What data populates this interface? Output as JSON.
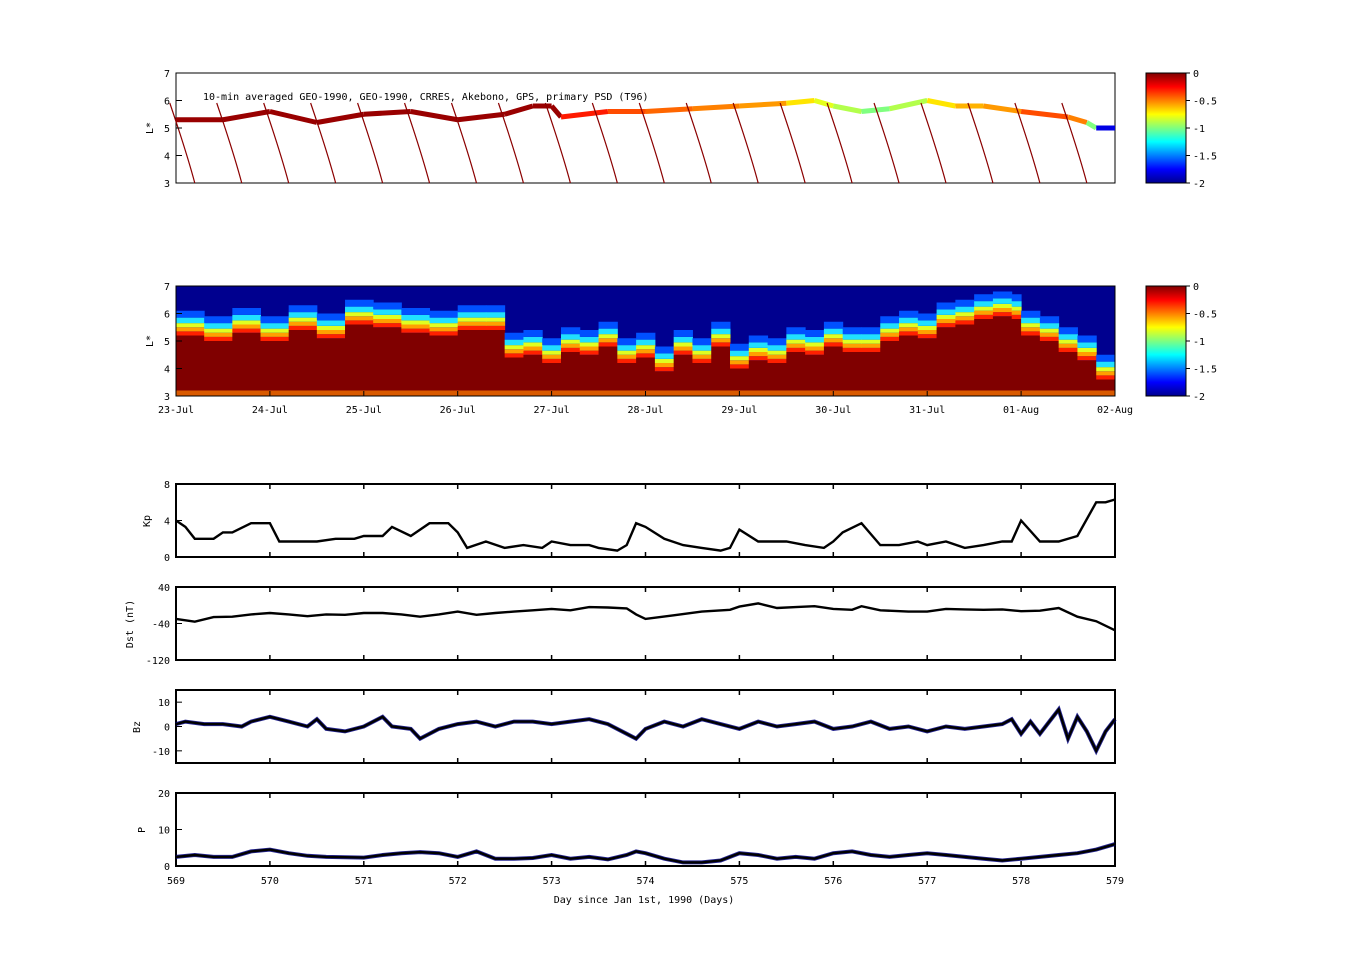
{
  "figure": {
    "annotation": "10-min averaged GEO-1990, GEO-1990, CRRES, Akebono, GPS, primary PSD (T96)",
    "xlabel": "Day since Jan 1st, 1990 (Days)"
  },
  "chart_data": [
    {
      "type": "scatter",
      "panel": "observations",
      "ylabel": "L*",
      "ylim": [
        3,
        7
      ],
      "yticks": [
        "3",
        "4",
        "5",
        "6",
        "7"
      ],
      "xlim": [
        569,
        579
      ],
      "colorbar": {
        "ticks": [
          "0",
          "-0.5",
          "-1",
          "-1.5",
          "-2"
        ],
        "range": [
          -2,
          0
        ]
      },
      "series": [
        {
          "values": [
            [
              569.0,
              5.3,
              -0.05
            ],
            [
              569.5,
              5.3,
              -0.05
            ],
            [
              570.0,
              5.6,
              -0.05
            ],
            [
              570.5,
              5.2,
              -0.05
            ],
            [
              571.0,
              5.5,
              -0.05
            ],
            [
              571.5,
              5.6,
              -0.05
            ],
            [
              572.0,
              5.3,
              -0.05
            ],
            [
              572.5,
              5.5,
              -0.05
            ],
            [
              572.8,
              5.8,
              -0.05
            ],
            [
              573.0,
              5.8,
              -0.05
            ],
            [
              573.1,
              5.4,
              -0.3
            ],
            [
              573.6,
              5.6,
              -0.4
            ],
            [
              574.0,
              5.6,
              -0.45
            ],
            [
              574.5,
              5.7,
              -0.5
            ],
            [
              575.0,
              5.8,
              -0.55
            ],
            [
              575.5,
              5.9,
              -0.7
            ],
            [
              575.8,
              6.0,
              -0.8
            ],
            [
              576.0,
              5.8,
              -0.9
            ],
            [
              576.3,
              5.6,
              -1.0
            ],
            [
              576.6,
              5.7,
              -0.9
            ],
            [
              577.0,
              6.0,
              -0.7
            ],
            [
              577.3,
              5.8,
              -0.6
            ],
            [
              577.6,
              5.8,
              -0.55
            ],
            [
              578.0,
              5.6,
              -0.4
            ],
            [
              578.5,
              5.4,
              -0.5
            ],
            [
              578.7,
              5.2,
              -1.0
            ],
            [
              578.8,
              5.0,
              -1.8
            ],
            [
              579.0,
              5.0,
              -1.6
            ]
          ]
        }
      ]
    },
    {
      "type": "heatmap",
      "panel": "psd",
      "ylabel": "L*",
      "ylim": [
        3,
        7
      ],
      "yticks": [
        "3",
        "4",
        "5",
        "6",
        "7"
      ],
      "date_ticks": [
        "23-Jul",
        "24-Jul",
        "25-Jul",
        "26-Jul",
        "27-Jul",
        "28-Jul",
        "29-Jul",
        "30-Jul",
        "31-Jul",
        "01-Aug",
        "02-Aug"
      ],
      "colorbar": {
        "ticks": [
          "0",
          "-0.5",
          "-1",
          "-1.5",
          "-2"
        ],
        "range": [
          -2,
          0
        ]
      },
      "boundary_L": [
        [
          569.0,
          5.2
        ],
        [
          569.3,
          5.0
        ],
        [
          569.6,
          5.3
        ],
        [
          569.9,
          5.0
        ],
        [
          570.2,
          5.4
        ],
        [
          570.5,
          5.1
        ],
        [
          570.8,
          5.6
        ],
        [
          571.1,
          5.5
        ],
        [
          571.4,
          5.3
        ],
        [
          571.7,
          5.2
        ],
        [
          572.0,
          5.4
        ],
        [
          572.3,
          5.4
        ],
        [
          572.5,
          4.4
        ],
        [
          572.7,
          4.5
        ],
        [
          572.9,
          4.2
        ],
        [
          573.1,
          4.6
        ],
        [
          573.3,
          4.5
        ],
        [
          573.5,
          4.8
        ],
        [
          573.7,
          4.2
        ],
        [
          573.9,
          4.4
        ],
        [
          574.1,
          3.9
        ],
        [
          574.3,
          4.5
        ],
        [
          574.5,
          4.2
        ],
        [
          574.7,
          4.8
        ],
        [
          574.9,
          4.0
        ],
        [
          575.1,
          4.3
        ],
        [
          575.3,
          4.2
        ],
        [
          575.5,
          4.6
        ],
        [
          575.7,
          4.5
        ],
        [
          575.9,
          4.8
        ],
        [
          576.1,
          4.6
        ],
        [
          576.3,
          4.6
        ],
        [
          576.5,
          5.0
        ],
        [
          576.7,
          5.2
        ],
        [
          576.9,
          5.1
        ],
        [
          577.1,
          5.5
        ],
        [
          577.3,
          5.6
        ],
        [
          577.5,
          5.8
        ],
        [
          577.7,
          5.9
        ],
        [
          577.9,
          5.8
        ],
        [
          578.0,
          5.2
        ],
        [
          578.2,
          5.0
        ],
        [
          578.4,
          4.6
        ],
        [
          578.6,
          4.3
        ],
        [
          578.8,
          3.6
        ],
        [
          579.0,
          4.2
        ]
      ]
    },
    {
      "type": "line",
      "panel": "kp",
      "ylabel": "Kp",
      "ylim": [
        0,
        8
      ],
      "yticks": [
        "0",
        "4",
        "8"
      ],
      "x": [
        569.0,
        569.1,
        569.2,
        569.4,
        569.5,
        569.6,
        569.8,
        570.0,
        570.1,
        570.3,
        570.5,
        570.7,
        570.9,
        571.0,
        571.2,
        571.3,
        571.5,
        571.7,
        571.9,
        572.0,
        572.1,
        572.3,
        572.5,
        572.7,
        572.9,
        573.0,
        573.2,
        573.4,
        573.5,
        573.7,
        573.8,
        573.9,
        574.0,
        574.2,
        574.4,
        574.6,
        574.8,
        574.9,
        575.0,
        575.2,
        575.5,
        575.7,
        575.9,
        576.0,
        576.1,
        576.3,
        576.5,
        576.7,
        576.9,
        577.0,
        577.2,
        577.4,
        577.6,
        577.8,
        577.9,
        578.0,
        578.2,
        578.4,
        578.6,
        578.8,
        578.9,
        579.0
      ],
      "values": [
        4.0,
        3.3,
        2.0,
        2.0,
        2.7,
        2.7,
        3.7,
        3.7,
        1.7,
        1.7,
        1.7,
        2.0,
        2.0,
        2.3,
        2.3,
        3.3,
        2.3,
        3.7,
        3.7,
        2.7,
        1.0,
        1.7,
        1.0,
        1.3,
        1.0,
        1.7,
        1.3,
        1.3,
        1.0,
        0.7,
        1.3,
        3.7,
        3.3,
        2.0,
        1.3,
        1.0,
        0.7,
        1.0,
        3.0,
        1.7,
        1.7,
        1.3,
        1.0,
        1.7,
        2.7,
        3.7,
        1.3,
        1.3,
        1.7,
        1.3,
        1.7,
        1.0,
        1.3,
        1.7,
        1.7,
        4.0,
        1.7,
        1.7,
        2.3,
        6.0,
        6.0,
        6.3
      ]
    },
    {
      "type": "line",
      "panel": "dst",
      "ylabel": "Dst (nT)",
      "ylim": [
        -120,
        40
      ],
      "yticks": [
        "-120",
        "-40",
        "40"
      ],
      "x": [
        569.0,
        569.2,
        569.4,
        569.6,
        569.8,
        570.0,
        570.2,
        570.4,
        570.6,
        570.8,
        571.0,
        571.2,
        571.4,
        571.6,
        571.8,
        572.0,
        572.2,
        572.4,
        572.6,
        572.8,
        573.0,
        573.2,
        573.4,
        573.6,
        573.8,
        573.9,
        574.0,
        574.3,
        574.6,
        574.9,
        575.0,
        575.2,
        575.4,
        575.6,
        575.8,
        576.0,
        576.2,
        576.3,
        576.5,
        576.8,
        577.0,
        577.2,
        577.4,
        577.6,
        577.8,
        578.0,
        578.2,
        578.4,
        578.6,
        578.8,
        579.0
      ],
      "values": [
        -30,
        -36,
        -26,
        -25,
        -20,
        -17,
        -20,
        -24,
        -20,
        -21,
        -17,
        -17,
        -20,
        -25,
        -20,
        -14,
        -21,
        -17,
        -14,
        -11,
        -8,
        -11,
        -4,
        -5,
        -7,
        -20,
        -30,
        -22,
        -14,
        -10,
        -3,
        4,
        -6,
        -4,
        -2,
        -8,
        -10,
        -2,
        -11,
        -14,
        -14,
        -8,
        -9,
        -10,
        -9,
        -13,
        -12,
        -6,
        -25,
        -35,
        -55
      ]
    },
    {
      "type": "line",
      "panel": "bz",
      "ylabel": "Bz",
      "ylim": [
        -15,
        15
      ],
      "yticks": [
        "-10",
        "0",
        "10"
      ],
      "series_colors": [
        "#000080",
        "#000000"
      ],
      "x": [
        569.0,
        569.1,
        569.3,
        569.5,
        569.7,
        569.8,
        569.9,
        570.0,
        570.2,
        570.4,
        570.5,
        570.6,
        570.8,
        571.0,
        571.2,
        571.3,
        571.5,
        571.6,
        571.8,
        572.0,
        572.2,
        572.4,
        572.6,
        572.8,
        573.0,
        573.2,
        573.4,
        573.6,
        573.8,
        573.9,
        574.0,
        574.2,
        574.4,
        574.6,
        574.8,
        575.0,
        575.2,
        575.4,
        575.6,
        575.8,
        576.0,
        576.2,
        576.4,
        576.6,
        576.8,
        577.0,
        577.2,
        577.4,
        577.6,
        577.8,
        577.9,
        578.0,
        578.1,
        578.2,
        578.3,
        578.4,
        578.5,
        578.6,
        578.7,
        578.8,
        578.9,
        579.0
      ],
      "values": [
        1,
        2,
        1,
        1,
        0,
        2,
        3,
        4,
        2,
        0,
        3,
        -1,
        -2,
        0,
        4,
        0,
        -1,
        -5,
        -1,
        1,
        2,
        0,
        2,
        2,
        1,
        2,
        3,
        1,
        -3,
        -5,
        -1,
        2,
        0,
        3,
        1,
        -1,
        2,
        0,
        1,
        2,
        -1,
        0,
        2,
        -1,
        0,
        -2,
        0,
        -1,
        0,
        1,
        3,
        -3,
        2,
        -3,
        2,
        7,
        -5,
        4,
        -2,
        -10,
        -2,
        3
      ]
    },
    {
      "type": "line",
      "panel": "pressure",
      "ylabel": "P",
      "ylim": [
        0,
        20
      ],
      "yticks": [
        "0",
        "10",
        "20"
      ],
      "xticks": [
        "569",
        "570",
        "571",
        "572",
        "573",
        "574",
        "575",
        "576",
        "577",
        "578",
        "579"
      ],
      "series_colors": [
        "#000080",
        "#000000"
      ],
      "x": [
        569.0,
        569.2,
        569.4,
        569.6,
        569.8,
        570.0,
        570.2,
        570.4,
        570.6,
        570.8,
        571.0,
        571.2,
        571.4,
        571.6,
        571.8,
        572.0,
        572.2,
        572.4,
        572.6,
        572.8,
        573.0,
        573.2,
        573.4,
        573.6,
        573.8,
        573.9,
        574.0,
        574.2,
        574.4,
        574.6,
        574.8,
        575.0,
        575.2,
        575.4,
        575.6,
        575.8,
        576.0,
        576.2,
        576.4,
        576.6,
        576.8,
        577.0,
        577.2,
        577.4,
        577.6,
        577.8,
        578.0,
        578.2,
        578.4,
        578.6,
        578.8,
        579.0
      ],
      "values": [
        2.5,
        3.0,
        2.5,
        2.5,
        4.0,
        4.5,
        3.5,
        2.8,
        2.5,
        2.4,
        2.3,
        3.0,
        3.5,
        3.8,
        3.5,
        2.5,
        4.0,
        2.0,
        2.0,
        2.2,
        3.0,
        2.0,
        2.5,
        1.8,
        3.0,
        4.0,
        3.5,
        2.0,
        1.0,
        1.0,
        1.5,
        3.5,
        3.0,
        2.0,
        2.5,
        2.0,
        3.5,
        4.0,
        3.0,
        2.5,
        3.0,
        3.5,
        3.0,
        2.5,
        2.0,
        1.5,
        2.0,
        2.5,
        3.0,
        3.5,
        4.5,
        6.0
      ]
    }
  ]
}
